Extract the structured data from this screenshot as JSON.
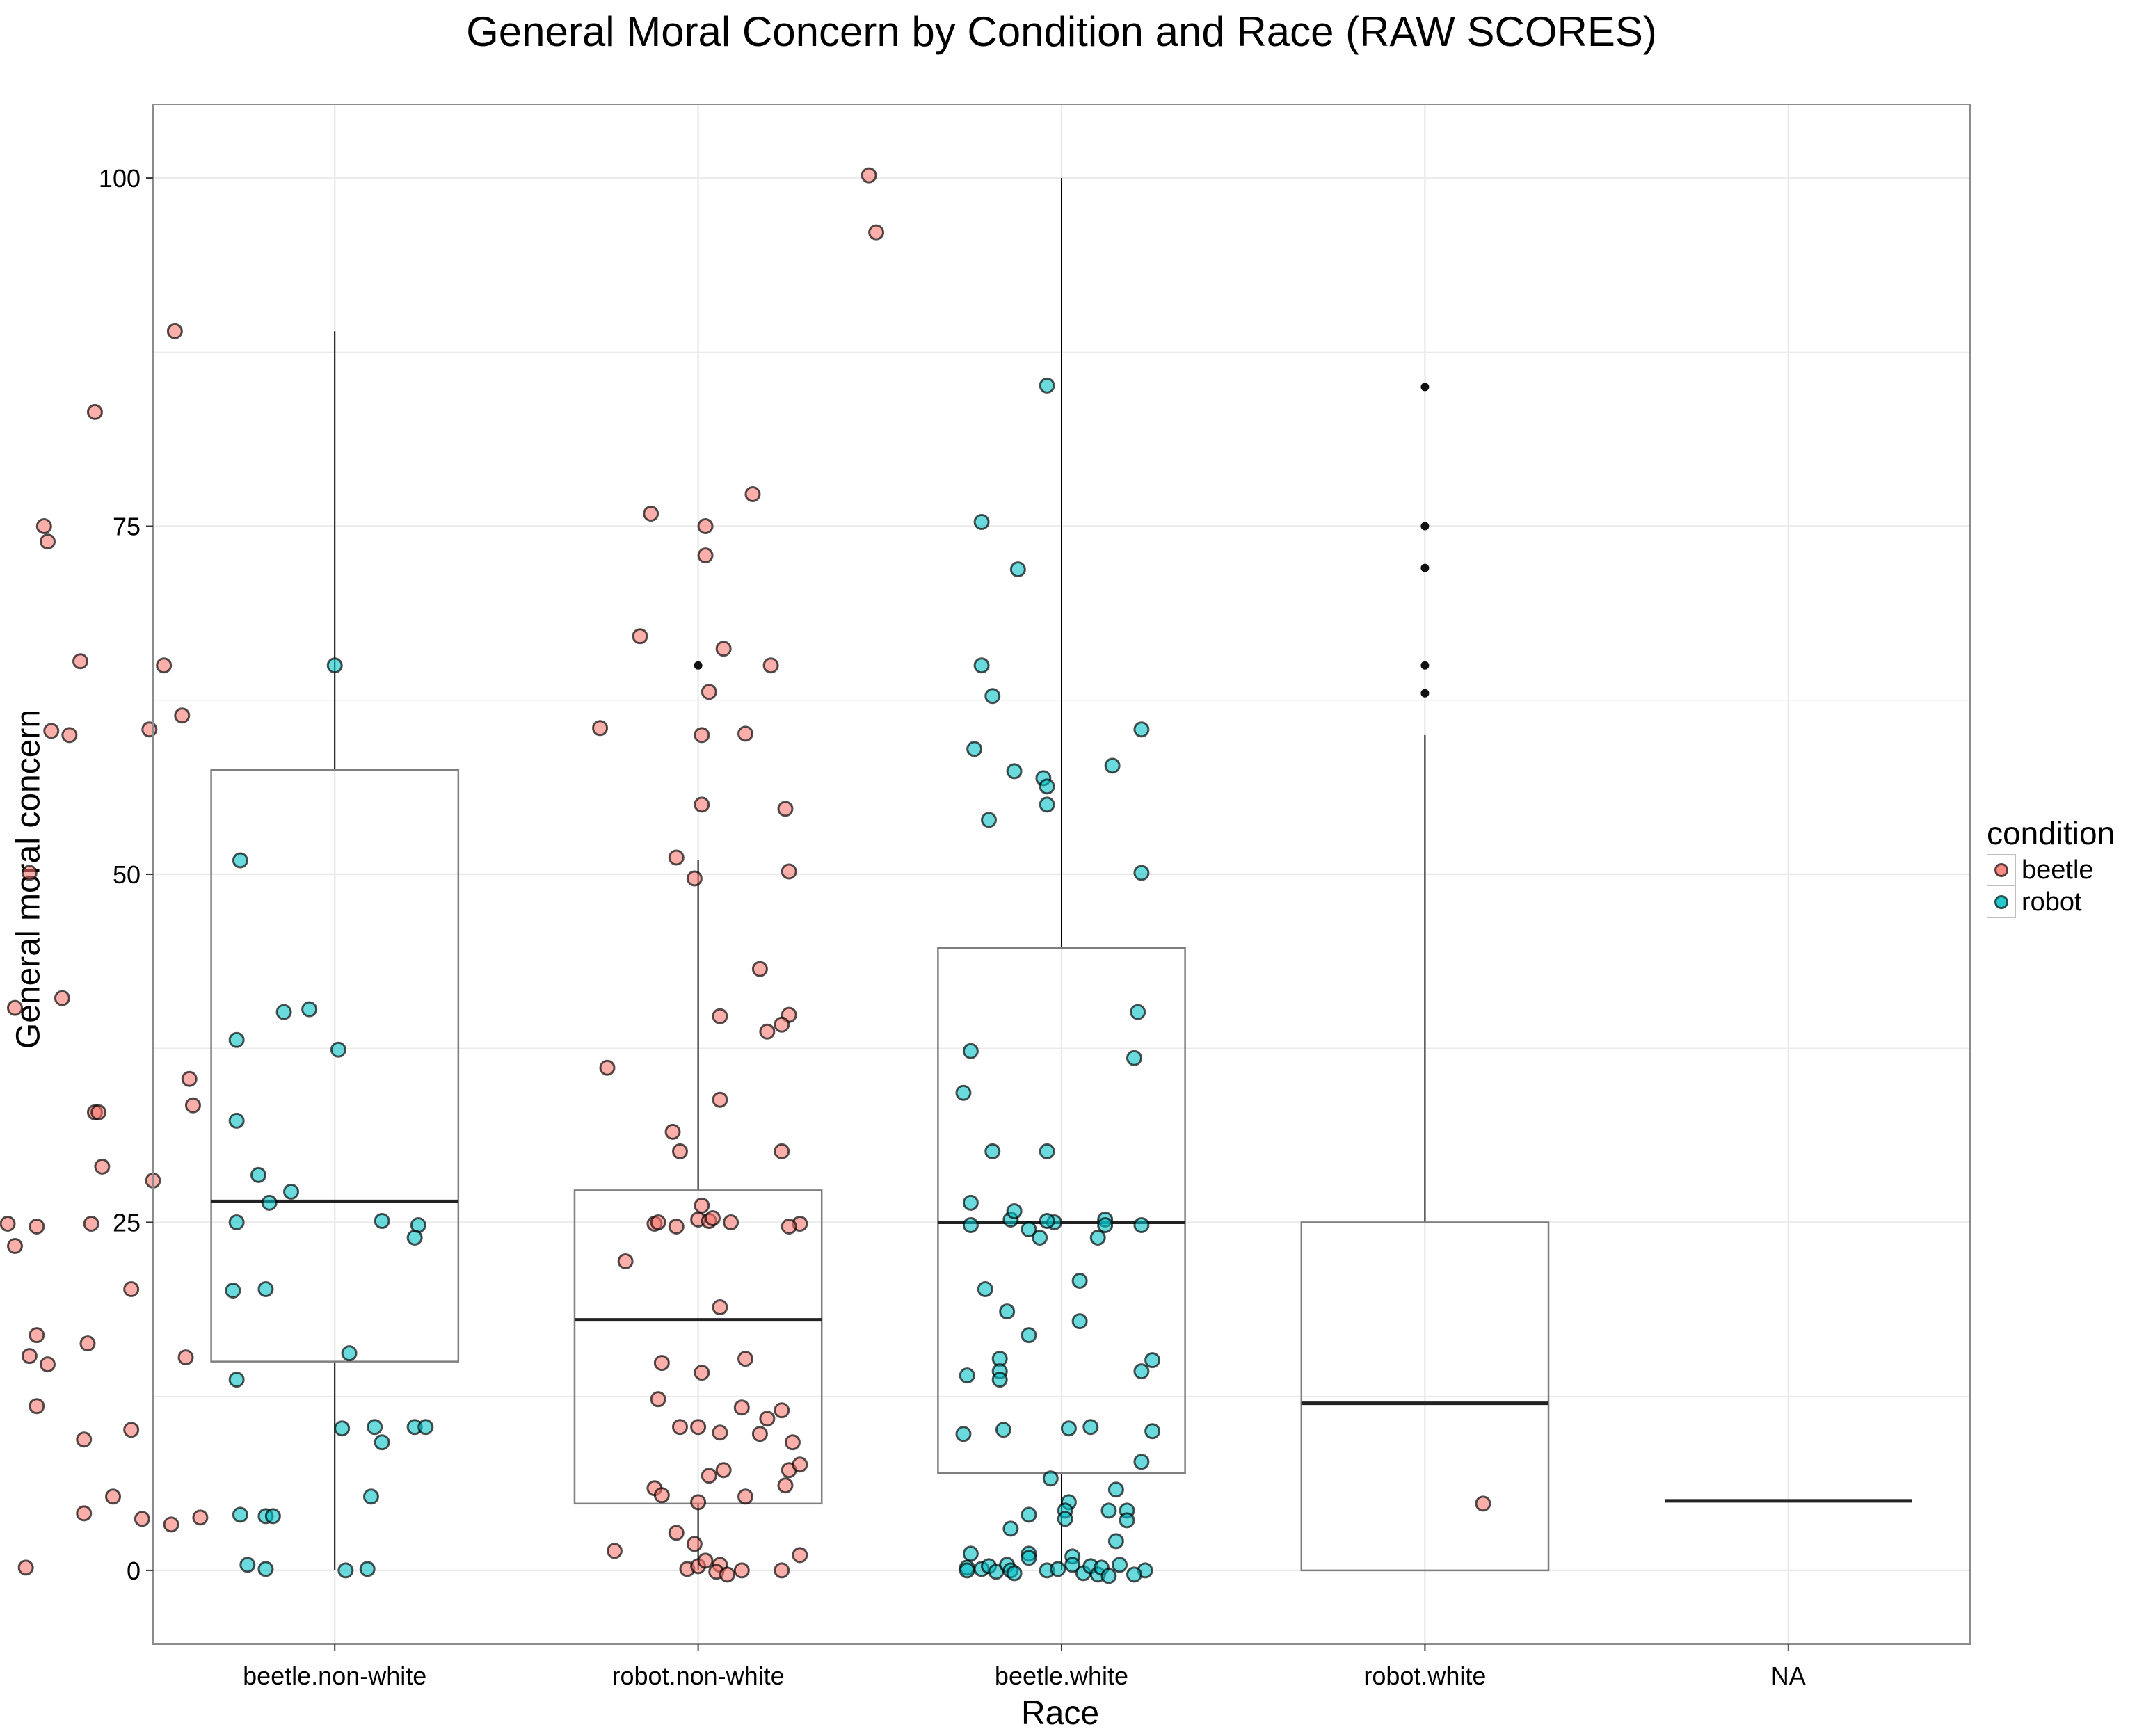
{
  "colors": {
    "beetle": "#F8766D",
    "robot": "#00BFC4",
    "outline": "#000000",
    "panel_border": "#8C8C8C",
    "grid": "#EBEBEB"
  },
  "chart_data": {
    "type": "box",
    "title": "General Moral Concern by Condition and Race (RAW SCORES)",
    "xlabel": "Race",
    "ylabel": "General moral concern",
    "categories": [
      "beetle.non-white",
      "robot.non-white",
      "beetle.white",
      "robot.white",
      "NA"
    ],
    "ylim": [
      -5.3,
      105.3
    ],
    "yticks": [
      0,
      25,
      50,
      75,
      100
    ],
    "grid": true,
    "legend": {
      "title": "condition",
      "entries": [
        "beetle",
        "robot"
      ],
      "position": "right"
    },
    "boxes": [
      {
        "category": "beetle.non-white",
        "q1": 15,
        "median": 26.5,
        "q3": 57.5,
        "whisker_low": 0,
        "whisker_high": 89,
        "outliers": []
      },
      {
        "category": "robot.non-white",
        "q1": 4.8,
        "median": 18,
        "q3": 27.3,
        "whisker_low": 0,
        "whisker_high": 51,
        "outliers": [
          65
        ]
      },
      {
        "category": "beetle.white",
        "q1": 7,
        "median": 25,
        "q3": 44.7,
        "whisker_low": 0,
        "whisker_high": 100,
        "outliers": []
      },
      {
        "category": "robot.white",
        "q1": 0,
        "median": 12,
        "q3": 25,
        "whisker_low": 0,
        "whisker_high": 60,
        "outliers": [
          63,
          65,
          72,
          75,
          85
        ]
      },
      {
        "category": "NA",
        "q1": 5,
        "median": 5,
        "q3": 5,
        "whisker_low": 5,
        "whisker_high": 5,
        "outliers": []
      }
    ],
    "series": [
      {
        "name": "beetle",
        "points": [
          [
            0.56,
            89
          ],
          [
            0.34,
            83.2
          ],
          [
            0.2,
            75
          ],
          [
            0.21,
            73.9
          ],
          [
            0.3,
            65.3
          ],
          [
            0.53,
            65
          ],
          [
            0.58,
            61.4
          ],
          [
            0.22,
            60.3
          ],
          [
            0.27,
            60
          ],
          [
            0.49,
            60.4
          ],
          [
            0.16,
            50.1
          ],
          [
            0.12,
            40.4
          ],
          [
            0.25,
            41.1
          ],
          [
            0.6,
            35.3
          ],
          [
            0.61,
            33.4
          ],
          [
            0.34,
            32.9
          ],
          [
            0.35,
            32.9
          ],
          [
            0.36,
            29
          ],
          [
            0.5,
            28
          ],
          [
            0.1,
            24.9
          ],
          [
            0.18,
            24.7
          ],
          [
            0.33,
            24.9
          ],
          [
            0.12,
            23.3
          ],
          [
            0.44,
            20.2
          ],
          [
            0.18,
            16.9
          ],
          [
            0.32,
            16.3
          ],
          [
            0.16,
            15.4
          ],
          [
            0.59,
            15.3
          ],
          [
            0.21,
            14.8
          ],
          [
            0.18,
            11.8
          ],
          [
            0.44,
            10.1
          ],
          [
            0.31,
            9.4
          ],
          [
            0.39,
            5.3
          ],
          [
            0.31,
            4.1
          ],
          [
            0.47,
            3.7
          ],
          [
            0.63,
            3.8
          ],
          [
            0.55,
            3.3
          ],
          [
            0.15,
            0.2
          ],
          [
            2.47,
            100.2
          ],
          [
            2.49,
            96.1
          ],
          [
            1.87,
            75.9
          ],
          [
            2.02,
            75
          ],
          [
            2.02,
            72.9
          ],
          [
            2.15,
            77.3
          ],
          [
            1.84,
            67.1
          ],
          [
            2.07,
            66.2
          ],
          [
            2.2,
            65
          ],
          [
            2.03,
            63.1
          ],
          [
            1.73,
            60.5
          ],
          [
            2.01,
            60
          ],
          [
            2.13,
            60.1
          ],
          [
            2.01,
            55
          ],
          [
            2.24,
            54.7
          ],
          [
            1.94,
            51.2
          ],
          [
            1.99,
            49.7
          ],
          [
            2.25,
            50.2
          ],
          [
            2.17,
            43.2
          ],
          [
            2.06,
            39.8
          ],
          [
            2.25,
            39.9
          ],
          [
            2.23,
            39.2
          ],
          [
            2.19,
            38.7
          ],
          [
            1.75,
            36.1
          ],
          [
            2.06,
            33.8
          ],
          [
            1.93,
            31.5
          ],
          [
            1.95,
            30.1
          ],
          [
            2.23,
            30.1
          ],
          [
            1.88,
            24.9
          ],
          [
            1.89,
            25
          ],
          [
            1.94,
            24.7
          ],
          [
            2.01,
            26.2
          ],
          [
            2,
            25.2
          ],
          [
            2.03,
            25.1
          ],
          [
            2.04,
            25.3
          ],
          [
            2.09,
            25
          ],
          [
            2.28,
            24.9
          ],
          [
            2.25,
            24.7
          ],
          [
            1.8,
            22.2
          ],
          [
            2.06,
            18.9
          ],
          [
            1.9,
            14.9
          ],
          [
            2.01,
            14.2
          ],
          [
            2.13,
            15.2
          ],
          [
            1.89,
            12.3
          ],
          [
            2.12,
            11.7
          ],
          [
            2.23,
            11.5
          ],
          [
            1.95,
            10.3
          ],
          [
            2,
            10.3
          ],
          [
            2.06,
            9.9
          ],
          [
            2.19,
            10.9
          ],
          [
            2.17,
            9.8
          ],
          [
            2.26,
            9.2
          ],
          [
            2.03,
            6.8
          ],
          [
            2.07,
            7.2
          ],
          [
            2.25,
            7.2
          ],
          [
            2.28,
            7.6
          ],
          [
            2.24,
            6.1
          ],
          [
            1.88,
            5.9
          ],
          [
            1.9,
            5.4
          ],
          [
            2,
            4.9
          ],
          [
            2.13,
            5.3
          ],
          [
            1.94,
            2.7
          ],
          [
            1.99,
            1.9
          ],
          [
            1.77,
            1.4
          ],
          [
            2.28,
            1.1
          ],
          [
            1.97,
            0.1
          ],
          [
            2,
            0.3
          ],
          [
            2.02,
            0.7
          ],
          [
            2.06,
            0.4
          ],
          [
            2.05,
            -0.1
          ],
          [
            2.12,
            0
          ],
          [
            2.08,
            -0.3
          ],
          [
            2.23,
            0
          ],
          [
            4.16,
            4.8
          ]
        ]
      },
      {
        "name": "robot",
        "points": [
          [
            1,
            65
          ],
          [
            0.74,
            51
          ],
          [
            0.86,
            40.1
          ],
          [
            0.93,
            40.3
          ],
          [
            1.01,
            37.4
          ],
          [
            0.73,
            38.1
          ],
          [
            0.73,
            32.3
          ],
          [
            0.79,
            28.4
          ],
          [
            0.88,
            27.2
          ],
          [
            0.82,
            26.4
          ],
          [
            0.73,
            25
          ],
          [
            1.13,
            25.1
          ],
          [
            1.23,
            24.8
          ],
          [
            1.22,
            23.9
          ],
          [
            0.72,
            20.1
          ],
          [
            0.81,
            20.2
          ],
          [
            1.04,
            15.6
          ],
          [
            0.73,
            13.7
          ],
          [
            1.02,
            10.2
          ],
          [
            1.11,
            10.3
          ],
          [
            1.13,
            9.2
          ],
          [
            1.22,
            10.3
          ],
          [
            1.25,
            10.3
          ],
          [
            1.1,
            5.3
          ],
          [
            0.74,
            4
          ],
          [
            0.81,
            3.9
          ],
          [
            0.83,
            3.9
          ],
          [
            0.76,
            0.4
          ],
          [
            0.81,
            0.1
          ],
          [
            1.03,
            0
          ],
          [
            1.09,
            0.1
          ],
          [
            2.96,
            85.1
          ],
          [
            2.78,
            75.3
          ],
          [
            2.88,
            71.9
          ],
          [
            2.78,
            65
          ],
          [
            2.81,
            62.8
          ],
          [
            2.76,
            59
          ],
          [
            2.87,
            57.4
          ],
          [
            2.95,
            56.9
          ],
          [
            2.96,
            56.3
          ],
          [
            3.14,
            57.8
          ],
          [
            3.22,
            60.4
          ],
          [
            2.8,
            53.9
          ],
          [
            2.96,
            55
          ],
          [
            3.22,
            50.1
          ],
          [
            2.75,
            37.3
          ],
          [
            3.21,
            40.1
          ],
          [
            2.73,
            34.3
          ],
          [
            3.2,
            36.8
          ],
          [
            2.81,
            30.1
          ],
          [
            2.96,
            30.1
          ],
          [
            2.75,
            26.4
          ],
          [
            2.75,
            24.8
          ],
          [
            2.86,
            25.2
          ],
          [
            2.87,
            25.8
          ],
          [
            2.91,
            24.5
          ],
          [
            2.94,
            23.9
          ],
          [
            2.98,
            25
          ],
          [
            3.12,
            25.2
          ],
          [
            3.12,
            24.8
          ],
          [
            3.22,
            24.8
          ],
          [
            2.96,
            25.1
          ],
          [
            3.1,
            23.9
          ],
          [
            2.79,
            20.2
          ],
          [
            2.85,
            18.6
          ],
          [
            3.05,
            20.8
          ],
          [
            3.05,
            17.9
          ],
          [
            2.91,
            16.9
          ],
          [
            2.83,
            15.2
          ],
          [
            2.83,
            14.3
          ],
          [
            2.83,
            13.7
          ],
          [
            2.74,
            14
          ],
          [
            3.25,
            15.1
          ],
          [
            3.22,
            14.3
          ],
          [
            3.02,
            10.2
          ],
          [
            3.08,
            10.3
          ],
          [
            2.73,
            9.8
          ],
          [
            2.84,
            10.1
          ],
          [
            3.25,
            10
          ],
          [
            3.22,
            7.8
          ],
          [
            2.97,
            6.6
          ],
          [
            3.15,
            5.8
          ],
          [
            3.02,
            4.9
          ],
          [
            3.01,
            4.3
          ],
          [
            3.13,
            4.3
          ],
          [
            3.18,
            4.3
          ],
          [
            2.91,
            4
          ],
          [
            3.18,
            3.6
          ],
          [
            3.01,
            3.7
          ],
          [
            2.86,
            3
          ],
          [
            3.15,
            2.1
          ],
          [
            2.75,
            1.2
          ],
          [
            2.91,
            1.2
          ],
          [
            2.91,
            0.9
          ],
          [
            3.03,
            1
          ],
          [
            2.74,
            0.2
          ],
          [
            2.74,
            0
          ],
          [
            2.78,
            0.1
          ],
          [
            2.8,
            0.3
          ],
          [
            2.82,
            -0.1
          ],
          [
            2.85,
            0.4
          ],
          [
            2.86,
            0
          ],
          [
            2.87,
            -0.2
          ],
          [
            2.96,
            0
          ],
          [
            2.99,
            0.1
          ],
          [
            3.03,
            0.4
          ],
          [
            3.06,
            -0.2
          ],
          [
            3.08,
            0.3
          ],
          [
            3.1,
            -0.3
          ],
          [
            3.11,
            0.2
          ],
          [
            3.13,
            -0.4
          ],
          [
            3.16,
            0.4
          ],
          [
            3.23,
            0
          ],
          [
            3.2,
            -0.3
          ]
        ]
      }
    ]
  }
}
